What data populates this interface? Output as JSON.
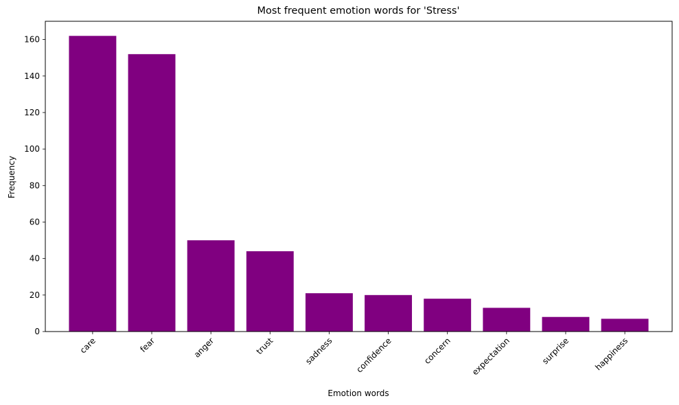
{
  "chart_data": {
    "type": "bar",
    "title": "Most frequent emotion words for 'Stress'",
    "xlabel": "Emotion words",
    "ylabel": "Frequency",
    "categories": [
      "care",
      "fear",
      "anger",
      "trust",
      "sadness",
      "confidence",
      "concern",
      "expectation",
      "surprise",
      "happiness"
    ],
    "values": [
      162,
      152,
      50,
      44,
      21,
      20,
      18,
      13,
      8,
      7
    ],
    "ylim": [
      0,
      170
    ],
    "yticks": [
      0,
      20,
      40,
      60,
      80,
      100,
      120,
      140,
      160
    ],
    "bar_color": "#800080",
    "grid": false,
    "legend": "none"
  }
}
